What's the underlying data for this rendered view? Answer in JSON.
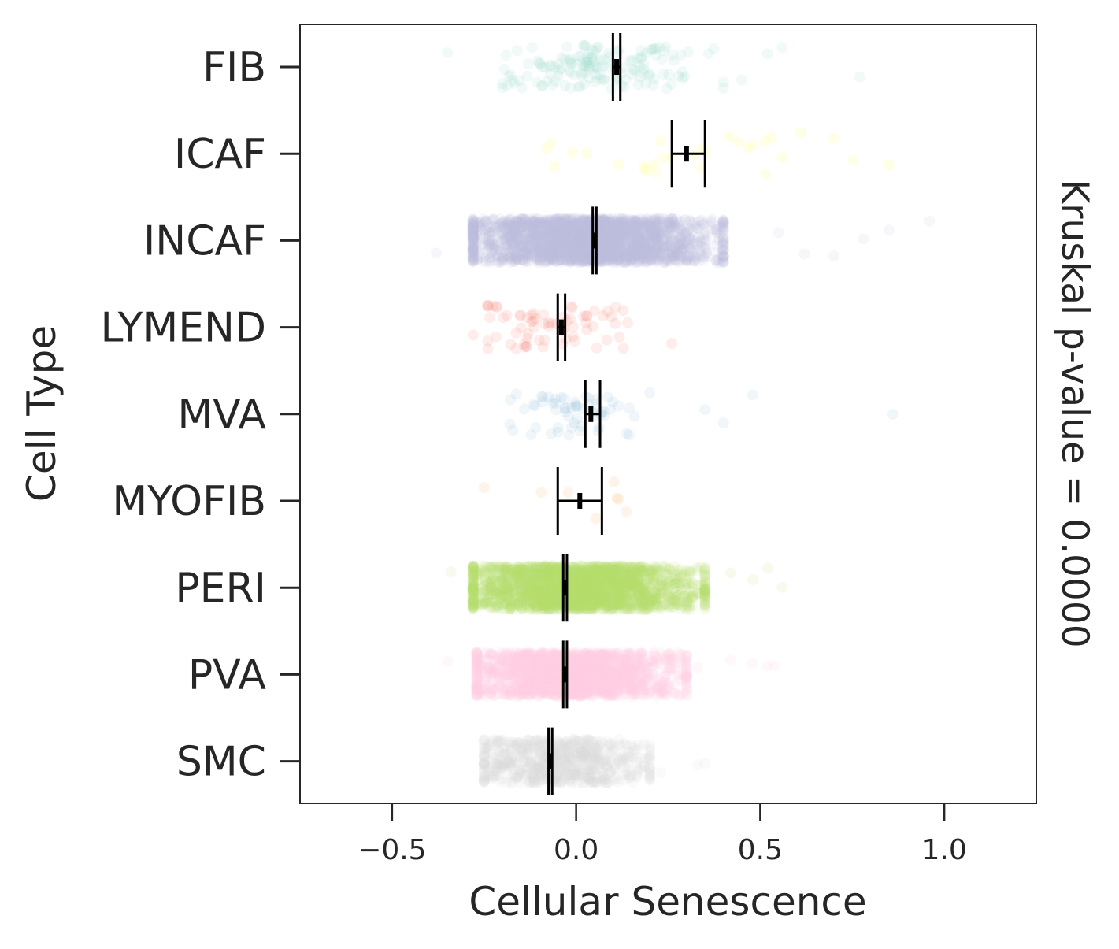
{
  "chart_data": {
    "type": "strip",
    "xlabel": "Cellular Senescence",
    "ylabel": "Cell Type",
    "right_label": "Kruskal p-value = 0.0000",
    "xlim": [
      -0.75,
      1.25
    ],
    "xticks": [
      -0.5,
      0.0,
      0.5,
      1.0
    ],
    "xtick_labels": [
      "−0.5",
      "0.0",
      "0.5",
      "1.0"
    ],
    "grid": false,
    "legend": "none",
    "categories": [
      {
        "name": "FIB",
        "color": "#8dd3c7",
        "alpha": 0.12,
        "n": 150,
        "mean": 0.11,
        "ci": [
          0.1,
          0.12
        ],
        "dist_low": -0.2,
        "dist_high": 0.4,
        "outliers": [
          -0.35,
          0.45,
          0.52,
          0.56,
          0.77
        ]
      },
      {
        "name": "ICAF",
        "color": "#ffffb3",
        "alpha": 0.3,
        "n": 28,
        "mean": 0.3,
        "ci": [
          0.26,
          0.35
        ],
        "dist_low": -0.08,
        "dist_high": 0.7,
        "outliers": [
          0.75,
          0.85
        ]
      },
      {
        "name": "INCAF",
        "color": "#bebada",
        "alpha": 0.12,
        "n": 2600,
        "mean": 0.05,
        "ci": [
          0.045,
          0.055
        ],
        "dist_low": -0.28,
        "dist_high": 0.4,
        "outliers": [
          -0.38,
          0.55,
          0.62,
          0.7,
          0.78,
          0.85,
          0.96
        ]
      },
      {
        "name": "LYMEND",
        "color": "#fb8072",
        "alpha": 0.14,
        "n": 70,
        "mean": -0.04,
        "ci": [
          -0.05,
          -0.03
        ],
        "dist_low": -0.24,
        "dist_high": 0.14,
        "outliers": [
          -0.28,
          0.26
        ]
      },
      {
        "name": "MVA",
        "color": "#80b1d3",
        "alpha": 0.12,
        "n": 60,
        "mean": 0.04,
        "ci": [
          0.025,
          0.065
        ],
        "dist_low": -0.18,
        "dist_high": 0.2,
        "outliers": [
          0.35,
          0.4,
          0.48,
          0.86
        ]
      },
      {
        "name": "MYOFIB",
        "color": "#fdb462",
        "alpha": 0.14,
        "n": 8,
        "mean": 0.01,
        "ci": [
          -0.05,
          0.07
        ],
        "dist_low": -0.25,
        "dist_high": 0.32,
        "outliers": []
      },
      {
        "name": "PERI",
        "color": "#b3de69",
        "alpha": 0.12,
        "n": 2300,
        "mean": -0.03,
        "ci": [
          -0.035,
          -0.025
        ],
        "dist_low": -0.28,
        "dist_high": 0.35,
        "outliers": [
          -0.34,
          0.42,
          0.48,
          0.52,
          0.56
        ]
      },
      {
        "name": "PVA",
        "color": "#fccde5",
        "alpha": 0.14,
        "n": 1800,
        "mean": -0.03,
        "ci": [
          -0.035,
          -0.025
        ],
        "dist_low": -0.27,
        "dist_high": 0.3,
        "outliers": [
          -0.35,
          0.33,
          0.42,
          0.48,
          0.52,
          0.54
        ]
      },
      {
        "name": "SMC",
        "color": "#d9d9d9",
        "alpha": 0.14,
        "n": 700,
        "mean": -0.07,
        "ci": [
          -0.075,
          -0.065
        ],
        "dist_low": -0.25,
        "dist_high": 0.2,
        "outliers": [
          0.23,
          0.33,
          0.35
        ]
      }
    ]
  }
}
